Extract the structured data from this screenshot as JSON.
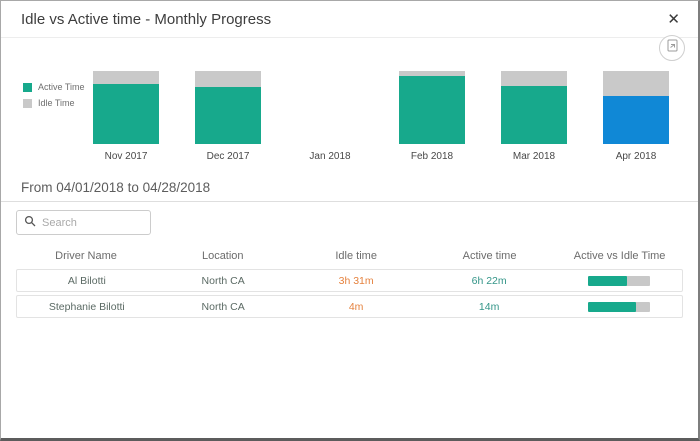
{
  "modal": {
    "title": "Idle vs Active time - Monthly Progress",
    "close_glyph": "✕"
  },
  "toolbar": {
    "export_icon": "export-image-icon"
  },
  "colors": {
    "active": "#17A98C",
    "idle": "#C9C9C9",
    "selected": "#1088D6",
    "idle_text": "#E5823E",
    "active_text": "#339588"
  },
  "chart_data": {
    "type": "bar",
    "stacked": true,
    "title": "Idle vs Active time - Monthly Progress",
    "categories": [
      "Nov 2017",
      "Dec 2017",
      "Jan 2018",
      "Feb 2018",
      "Mar 2018",
      "Apr 2018"
    ],
    "series": [
      {
        "name": "Active Time",
        "color": "#17A98C",
        "values_pct": [
          82,
          78,
          0,
          93,
          80,
          66
        ]
      },
      {
        "name": "Idle Time",
        "color": "#C9C9C9",
        "values_pct": [
          18,
          22,
          0,
          7,
          20,
          34
        ]
      }
    ],
    "selected_category": "Apr 2018",
    "selected_color": "#1088D6",
    "legend_position": "left",
    "ylim_pct": [
      0,
      100
    ],
    "grid": false
  },
  "period": {
    "label": "From 04/01/2018 to 04/28/2018"
  },
  "search": {
    "placeholder": "Search"
  },
  "table": {
    "columns": [
      "Driver Name",
      "Location",
      "Idle time",
      "Active time",
      "Active vs Idle Time"
    ],
    "rows": [
      {
        "driver": "Al Bilotti",
        "location": "North CA",
        "idle": "3h 31m",
        "active": "6h 22m",
        "active_pct": 64
      },
      {
        "driver": "Stephanie Bilotti",
        "location": "North CA",
        "idle": "4m",
        "active": "14m",
        "active_pct": 78
      }
    ]
  }
}
